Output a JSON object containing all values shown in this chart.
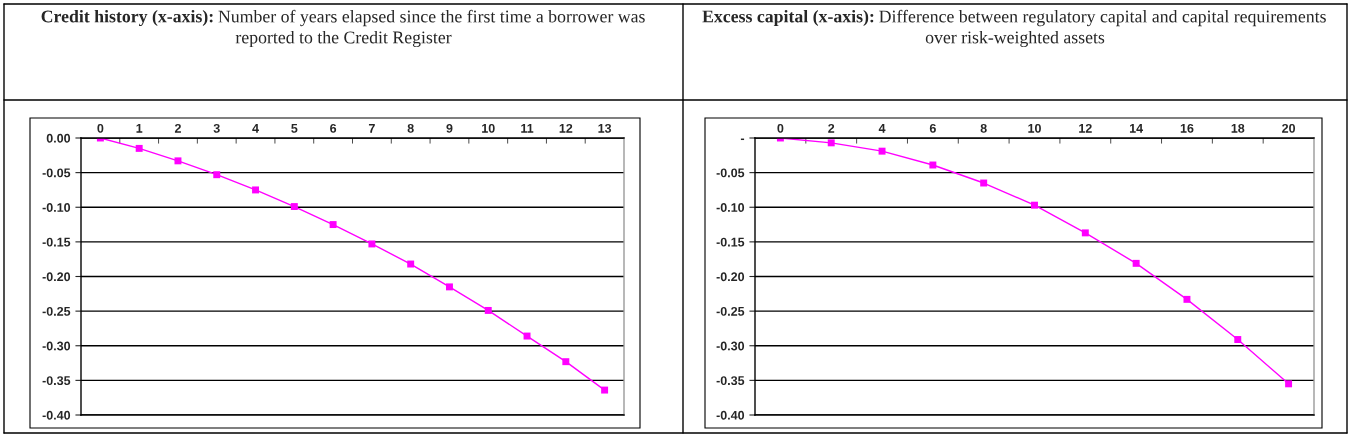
{
  "chart_data": [
    {
      "type": "line",
      "title": "Credit history (x-axis):",
      "subtitle": "Number of years elapsed since the first time a borrower was reported to the Credit Register",
      "categories": [
        "0",
        "1",
        "2",
        "3",
        "4",
        "5",
        "6",
        "7",
        "8",
        "9",
        "10",
        "11",
        "12",
        "13"
      ],
      "series": [
        {
          "color": "#ff00ff",
          "values": [
            0,
            -0.015,
            -0.033,
            -0.053,
            -0.075,
            -0.099,
            -0.125,
            -0.153,
            -0.182,
            -0.215,
            -0.249,
            -0.286,
            -0.323,
            -0.364
          ]
        }
      ],
      "ylim": [
        -0.4,
        0
      ],
      "yticks": [
        {
          "value": -0.4,
          "label": "-0.40"
        },
        {
          "value": -0.35,
          "label": "-0.35"
        },
        {
          "value": -0.3,
          "label": "-0.30"
        },
        {
          "value": -0.25,
          "label": "-0.25"
        },
        {
          "value": -0.2,
          "label": "-0.20"
        },
        {
          "value": -0.15,
          "label": "-0.15"
        },
        {
          "value": -0.1,
          "label": "-0.10"
        },
        {
          "value": -0.05,
          "label": "-0.05"
        },
        {
          "value": 0,
          "label": "0.00"
        }
      ],
      "grid": "y",
      "marker": "square",
      "line_style": "solid"
    },
    {
      "type": "line",
      "title": "Excess capital (x-axis):",
      "subtitle": "Difference between regulatory capital and capital requirements over risk-weighted assets",
      "categories": [
        "0",
        "2",
        "4",
        "6",
        "8",
        "10",
        "12",
        "14",
        "16",
        "18",
        "20"
      ],
      "series": [
        {
          "color": "#ff00ff",
          "values": [
            0,
            -0.007,
            -0.019,
            -0.039,
            -0.065,
            -0.097,
            -0.137,
            -0.181,
            -0.233,
            -0.291,
            -0.355
          ]
        }
      ],
      "ylim": [
        -0.4,
        0
      ],
      "yticks": [
        {
          "value": -0.4,
          "label": "-0.40"
        },
        {
          "value": -0.35,
          "label": "-0.35"
        },
        {
          "value": -0.3,
          "label": "-0.30"
        },
        {
          "value": -0.25,
          "label": "-0.25"
        },
        {
          "value": -0.2,
          "label": "-0.20"
        },
        {
          "value": -0.15,
          "label": "-0.15"
        },
        {
          "value": -0.1,
          "label": "-0.10"
        },
        {
          "value": -0.05,
          "label": "-0.05"
        },
        {
          "value": 0,
          "label": "-"
        }
      ],
      "grid": "y",
      "marker": "square",
      "line_style": "solid"
    }
  ]
}
